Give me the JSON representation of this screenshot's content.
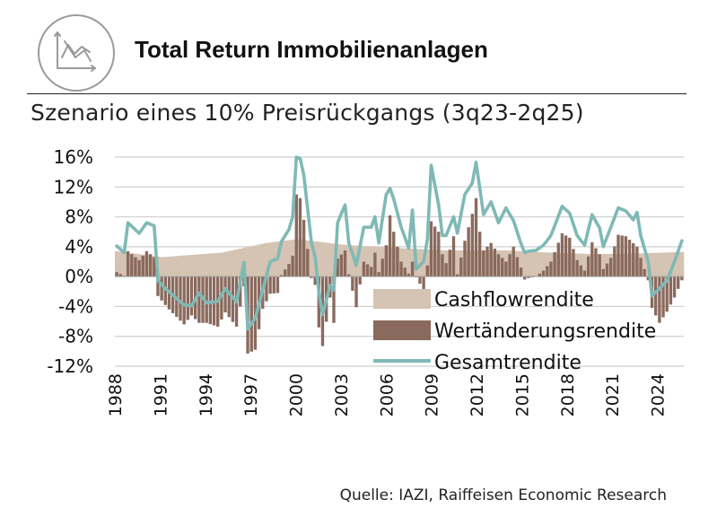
{
  "header": {
    "title": "Total Return Immobilienanlagen",
    "subtitle": "Szenario eines 10% Preisrückgangs (3q23-2q25)",
    "icon": "line-chart-icon"
  },
  "source": "Quelle: IAZI, Raiffeisen Economic Research",
  "colors": {
    "cashflow": "#d5c3b3",
    "wertaenderung": "#8a6a5d",
    "gesamt": "#7fb9b5",
    "grid": "#cfcfcf"
  },
  "chart_data": {
    "type": "bar",
    "title": "Total Return Immobilienanlagen",
    "subtitle": "Szenario eines 10% Preisrückgangs (3q23-2q25)",
    "xlabel": "",
    "ylabel": "",
    "ylim": [
      -12,
      16
    ],
    "xlim": [
      1988,
      2025.75
    ],
    "y_ticks": [
      "16%",
      "12%",
      "8%",
      "4%",
      "0%",
      "-4%",
      "-8%",
      "-12%"
    ],
    "y_tick_values": [
      16,
      12,
      8,
      4,
      0,
      -4,
      -8,
      -12
    ],
    "x_ticks": [
      "1988",
      "1991",
      "1994",
      "1997",
      "2000",
      "2003",
      "2006",
      "2009",
      "2012",
      "2015",
      "2018",
      "2021",
      "2024"
    ],
    "x_tick_values": [
      1988,
      1991,
      1994,
      1997,
      2000,
      2003,
      2006,
      2009,
      2012,
      2015,
      2018,
      2021,
      2024
    ],
    "grid": true,
    "legend_position": "bottom-right",
    "frequency": "quarterly",
    "series": [
      {
        "name": "Cashflowrendite",
        "kind": "bar",
        "anchors": [
          [
            1988,
            3.4
          ],
          [
            1991,
            2.6
          ],
          [
            1995,
            3.2
          ],
          [
            1998,
            4.5
          ],
          [
            2000,
            5.0
          ],
          [
            2001.75,
            4.6
          ],
          [
            2003,
            4.3
          ],
          [
            2005,
            4.0
          ],
          [
            2008,
            3.7
          ],
          [
            2010,
            3.5
          ],
          [
            2014,
            3.5
          ],
          [
            2017,
            3.2
          ],
          [
            2020,
            3.0
          ],
          [
            2023,
            3.1
          ],
          [
            2025.75,
            3.3
          ]
        ]
      },
      {
        "name": "Wertänderungsrendite",
        "kind": "bar",
        "anchors": [
          [
            1988,
            0.6
          ],
          [
            1988.5,
            0.1
          ],
          [
            1988.75,
            3.4
          ],
          [
            1989.5,
            2.2
          ],
          [
            1990,
            3.4
          ],
          [
            1990.5,
            2.6
          ],
          [
            1990.75,
            -2.6
          ],
          [
            1991.5,
            -4.4
          ],
          [
            1992.5,
            -6.4
          ],
          [
            1993,
            -5.2
          ],
          [
            1993.5,
            -6.2
          ],
          [
            1994,
            -6.2
          ],
          [
            1994.75,
            -6.7
          ],
          [
            1995.25,
            -4.8
          ],
          [
            1996,
            -6.7
          ],
          [
            1996.5,
            -1.3
          ],
          [
            1996.75,
            -10.3
          ],
          [
            1997.25,
            -9.8
          ],
          [
            1997.75,
            -4.3
          ],
          [
            1998.25,
            -2.3
          ],
          [
            1998.75,
            -2.2
          ],
          [
            1999,
            0.2
          ],
          [
            1999.5,
            1.7
          ],
          [
            1999.75,
            2.8
          ],
          [
            2000,
            11.0
          ],
          [
            2000.25,
            10.5
          ],
          [
            2000.5,
            7.6
          ],
          [
            2001,
            -0.2
          ],
          [
            2001.25,
            -1.1
          ],
          [
            2001.5,
            -6.8
          ],
          [
            2001.75,
            -9.3
          ],
          [
            2002.25,
            -2.8
          ],
          [
            2002.5,
            -6.2
          ],
          [
            2002.75,
            2.4
          ],
          [
            2003.25,
            3.5
          ],
          [
            2003.5,
            0.3
          ],
          [
            2004,
            -4.1
          ],
          [
            2004.5,
            2.0
          ],
          [
            2005,
            1.3
          ],
          [
            2005.25,
            3.2
          ],
          [
            2005.5,
            0.6
          ],
          [
            2006,
            4.2
          ],
          [
            2006.25,
            8.2
          ],
          [
            2006.5,
            6.0
          ],
          [
            2007,
            2.0
          ],
          [
            2007.5,
            0.4
          ],
          [
            2007.75,
            2.0
          ],
          [
            2008,
            -0.1
          ],
          [
            2008.5,
            -1.8
          ],
          [
            2008.75,
            1.5
          ],
          [
            2009,
            7.4
          ],
          [
            2009.5,
            6.0
          ],
          [
            2009.75,
            3.0
          ],
          [
            2010,
            1.8
          ],
          [
            2010.5,
            5.4
          ],
          [
            2010.75,
            0.3
          ],
          [
            2011.25,
            4.8
          ],
          [
            2011.75,
            8.4
          ],
          [
            2012,
            10.5
          ],
          [
            2012.25,
            6.0
          ],
          [
            2012.5,
            3.5
          ],
          [
            2013,
            4.5
          ],
          [
            2013.5,
            3.0
          ],
          [
            2014,
            2.0
          ],
          [
            2014.5,
            4.0
          ],
          [
            2015,
            1.2
          ],
          [
            2015.25,
            -0.4
          ],
          [
            2015.5,
            -0.2
          ],
          [
            2016,
            0.0
          ],
          [
            2016.5,
            0.8
          ],
          [
            2017,
            2.0
          ],
          [
            2017.75,
            5.8
          ],
          [
            2018.25,
            5.2
          ],
          [
            2018.75,
            2.2
          ],
          [
            2019.25,
            0.8
          ],
          [
            2019.75,
            4.6
          ],
          [
            2020.25,
            3.0
          ],
          [
            2020.5,
            1.0
          ],
          [
            2021,
            2.5
          ],
          [
            2021.5,
            5.6
          ],
          [
            2022,
            5.4
          ],
          [
            2022.75,
            4.0
          ],
          [
            2023,
            2.5
          ],
          [
            2023.5,
            -0.5
          ],
          [
            2023.75,
            -4.2
          ],
          [
            2024.25,
            -6.2
          ],
          [
            2024.75,
            -4.7
          ],
          [
            2025.25,
            -2.8
          ],
          [
            2025.75,
            -0.5
          ]
        ]
      },
      {
        "name": "Gesamtrendite",
        "kind": "line",
        "anchors": [
          [
            1988,
            4.1
          ],
          [
            1988.5,
            3.2
          ],
          [
            1988.75,
            7.2
          ],
          [
            1989.5,
            5.8
          ],
          [
            1990,
            7.2
          ],
          [
            1990.5,
            6.8
          ],
          [
            1990.75,
            -0.5
          ],
          [
            1991.25,
            -1.6
          ],
          [
            1992.5,
            -3.8
          ],
          [
            1993,
            -3.9
          ],
          [
            1993.5,
            -2.2
          ],
          [
            1994,
            -3.5
          ],
          [
            1994.75,
            -3.3
          ],
          [
            1995.25,
            -1.6
          ],
          [
            1996,
            -3.4
          ],
          [
            1996.5,
            1.9
          ],
          [
            1996.75,
            -7.0
          ],
          [
            1997.25,
            -5.6
          ],
          [
            1997.75,
            -1.8
          ],
          [
            1998.25,
            2.0
          ],
          [
            1998.75,
            2.4
          ],
          [
            1999,
            4.7
          ],
          [
            1999.5,
            6.3
          ],
          [
            1999.75,
            8.0
          ],
          [
            2000,
            16.0
          ],
          [
            2000.25,
            15.8
          ],
          [
            2000.5,
            13.6
          ],
          [
            2001,
            4.6
          ],
          [
            2001.25,
            2.6
          ],
          [
            2001.5,
            -2.0
          ],
          [
            2001.75,
            -5.1
          ],
          [
            2002.25,
            -1.2
          ],
          [
            2002.5,
            -1.8
          ],
          [
            2002.75,
            7.2
          ],
          [
            2003.25,
            9.6
          ],
          [
            2003.5,
            4.5
          ],
          [
            2004,
            1.5
          ],
          [
            2004.5,
            6.6
          ],
          [
            2005,
            6.6
          ],
          [
            2005.25,
            8.0
          ],
          [
            2005.5,
            4.5
          ],
          [
            2006,
            11.0
          ],
          [
            2006.25,
            11.8
          ],
          [
            2006.5,
            10.4
          ],
          [
            2007,
            6.6
          ],
          [
            2007.5,
            3.8
          ],
          [
            2007.75,
            8.9
          ],
          [
            2008,
            1.0
          ],
          [
            2008.5,
            2.0
          ],
          [
            2008.75,
            5.0
          ],
          [
            2009,
            14.9
          ],
          [
            2009.5,
            9.6
          ],
          [
            2009.75,
            5.5
          ],
          [
            2010,
            5.5
          ],
          [
            2010.5,
            8.0
          ],
          [
            2010.75,
            5.8
          ],
          [
            2011.25,
            11.0
          ],
          [
            2011.75,
            12.5
          ],
          [
            2012,
            15.3
          ],
          [
            2012.25,
            11.8
          ],
          [
            2012.5,
            8.3
          ],
          [
            2013,
            10.0
          ],
          [
            2013.5,
            7.2
          ],
          [
            2014,
            9.2
          ],
          [
            2014.5,
            7.5
          ],
          [
            2015,
            4.4
          ],
          [
            2015.25,
            3.2
          ],
          [
            2015.5,
            3.4
          ],
          [
            2016,
            3.5
          ],
          [
            2016.5,
            4.2
          ],
          [
            2017,
            5.5
          ],
          [
            2017.75,
            9.4
          ],
          [
            2018.25,
            8.5
          ],
          [
            2018.75,
            5.5
          ],
          [
            2019.25,
            4.2
          ],
          [
            2019.75,
            8.3
          ],
          [
            2020.25,
            6.5
          ],
          [
            2020.5,
            4.0
          ],
          [
            2021,
            6.6
          ],
          [
            2021.5,
            9.2
          ],
          [
            2022,
            8.8
          ],
          [
            2022.5,
            7.6
          ],
          [
            2022.75,
            8.6
          ],
          [
            2023,
            5.5
          ],
          [
            2023.5,
            2.0
          ],
          [
            2023.75,
            -2.6
          ],
          [
            2024.25,
            -1.6
          ],
          [
            2024.75,
            -0.6
          ],
          [
            2025.25,
            2.0
          ],
          [
            2025.75,
            4.8
          ]
        ]
      }
    ]
  }
}
